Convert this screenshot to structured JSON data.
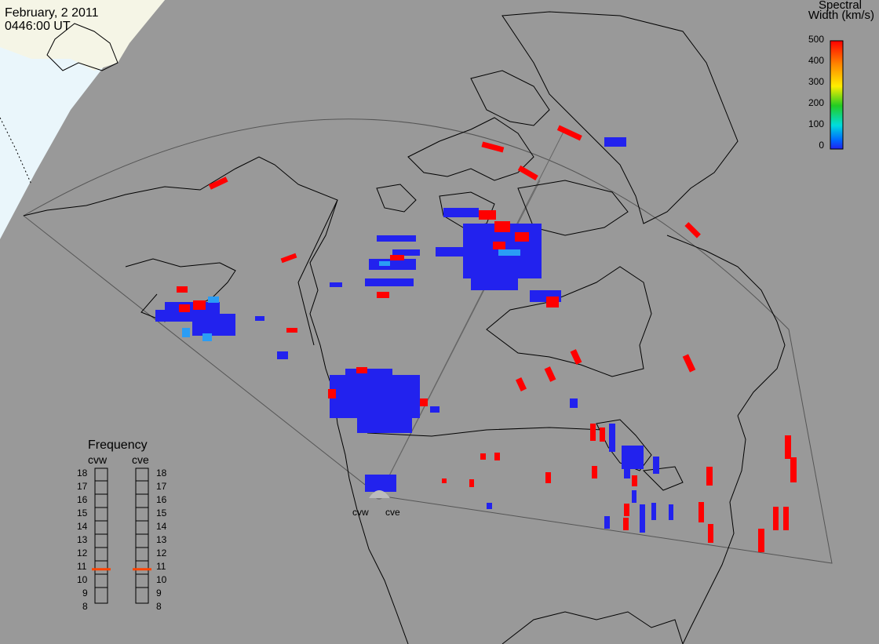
{
  "header": {
    "date": "February, 2 2011",
    "time": "0446:00 UT"
  },
  "colorbar": {
    "title_line1": "Spectral",
    "title_line2": "Width (km/s)",
    "ticks": [
      "500",
      "400",
      "300",
      "200",
      "100",
      "0"
    ],
    "colors": [
      "#ff0000",
      "#ff8800",
      "#ffee00",
      "#22cc22",
      "#00dddd",
      "#0044ff",
      "#2222ee"
    ]
  },
  "frequency_panel": {
    "title": "Frequency",
    "radar1": "cvw",
    "radar2": "cve",
    "ticks": [
      "18",
      "17",
      "16",
      "15",
      "14",
      "13",
      "12",
      "11",
      "10",
      "9",
      "8"
    ],
    "cvw_freq_mhz": 10.9,
    "cve_freq_mhz": 10.9,
    "marker_color": "#ff4400"
  },
  "radars": {
    "site1": "cvw",
    "site2": "cve"
  },
  "colors": {
    "background": "#999999",
    "daylight_ice": "#e8f6fb",
    "daylight_land": "#f5f5e8",
    "scatter_low": "#2222ee",
    "scatter_high": "#ff0000",
    "scatter_mid": "#2299ff"
  }
}
